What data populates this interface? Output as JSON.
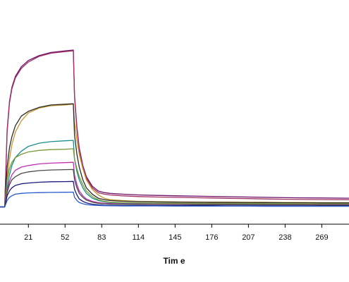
{
  "chart_data": {
    "type": "line",
    "title": "",
    "xlabel": "Tim e",
    "ylabel": "",
    "x_ticks": [
      21,
      52,
      83,
      114,
      145,
      176,
      207,
      238,
      269
    ],
    "xlim": [
      -3,
      292
    ],
    "ylim": [
      -0.02,
      1.1
    ],
    "association_end": 59,
    "grid": false,
    "legend": "none",
    "series": [
      {
        "color": "#6b0f6b",
        "x": [
          -3,
          1,
          3,
          5,
          7,
          10,
          15,
          21,
          30,
          40,
          52,
          59,
          60,
          62,
          64,
          67,
          70,
          75,
          80,
          85,
          90,
          100,
          114,
          130,
          145,
          160,
          176,
          190,
          207,
          220,
          238,
          250,
          269,
          292
        ],
        "y": [
          0,
          0,
          0.48,
          0.66,
          0.75,
          0.82,
          0.88,
          0.92,
          0.95,
          0.97,
          0.98,
          0.985,
          0.7,
          0.5,
          0.37,
          0.26,
          0.19,
          0.13,
          0.1,
          0.09,
          0.085,
          0.08,
          0.075,
          0.072,
          0.07,
          0.068,
          0.066,
          0.064,
          0.062,
          0.06,
          0.058,
          0.057,
          0.056,
          0.055
        ]
      },
      {
        "color": "#a03060",
        "x": [
          -3,
          1,
          3,
          5,
          7,
          10,
          15,
          21,
          30,
          40,
          52,
          59,
          60,
          62,
          64,
          67,
          70,
          75,
          80,
          85,
          90,
          100,
          114,
          130,
          145,
          160,
          176,
          190,
          207,
          220,
          238,
          250,
          269,
          292
        ],
        "y": [
          0,
          0,
          0.47,
          0.65,
          0.74,
          0.81,
          0.87,
          0.91,
          0.945,
          0.965,
          0.975,
          0.98,
          0.69,
          0.49,
          0.36,
          0.25,
          0.18,
          0.12,
          0.09,
          0.08,
          0.075,
          0.07,
          0.065,
          0.062,
          0.06,
          0.058,
          0.056,
          0.054,
          0.052,
          0.05,
          0.048,
          0.047,
          0.046,
          0.045
        ]
      },
      {
        "color": "#c89428",
        "x": [
          -3,
          1,
          3,
          5,
          7,
          10,
          15,
          21,
          30,
          40,
          52,
          59,
          60,
          62,
          64,
          67,
          70,
          75,
          80,
          85,
          90,
          100,
          114,
          130,
          145,
          160,
          176,
          190,
          207,
          220,
          238,
          250,
          269,
          292
        ],
        "y": [
          0,
          0,
          0.18,
          0.3,
          0.39,
          0.47,
          0.54,
          0.59,
          0.62,
          0.635,
          0.64,
          0.645,
          0.53,
          0.42,
          0.33,
          0.24,
          0.17,
          0.11,
          0.075,
          0.055,
          0.045,
          0.04,
          0.035,
          0.033,
          0.032,
          0.031,
          0.03,
          0.03,
          0.029,
          0.029,
          0.028,
          0.028,
          0.027,
          0.027
        ]
      },
      {
        "color": "#2a2a2a",
        "x": [
          -3,
          1,
          3,
          5,
          7,
          10,
          15,
          21,
          30,
          40,
          52,
          59,
          60,
          62,
          64,
          67,
          70,
          75,
          80,
          85,
          90,
          100,
          114,
          130,
          145,
          160,
          176,
          190,
          207,
          220,
          238,
          250,
          269,
          292
        ],
        "y": [
          0,
          0,
          0.25,
          0.37,
          0.44,
          0.51,
          0.57,
          0.6,
          0.625,
          0.64,
          0.645,
          0.648,
          0.45,
          0.33,
          0.25,
          0.17,
          0.12,
          0.08,
          0.055,
          0.045,
          0.04,
          0.036,
          0.033,
          0.031,
          0.03,
          0.029,
          0.028,
          0.028,
          0.027,
          0.027,
          0.026,
          0.026,
          0.025,
          0.025
        ]
      },
      {
        "color": "#1a8c8c",
        "x": [
          -3,
          1,
          3,
          5,
          7,
          10,
          15,
          21,
          30,
          40,
          52,
          59,
          60,
          62,
          64,
          67,
          70,
          75,
          80,
          85,
          90,
          100,
          114,
          130,
          145,
          160,
          176,
          190,
          207,
          220,
          238,
          250,
          269,
          292
        ],
        "y": [
          0,
          0,
          0.12,
          0.2,
          0.26,
          0.31,
          0.35,
          0.38,
          0.4,
          0.41,
          0.415,
          0.418,
          0.3,
          0.22,
          0.17,
          0.12,
          0.085,
          0.055,
          0.04,
          0.032,
          0.028,
          0.025,
          0.023,
          0.022,
          0.021,
          0.021,
          0.02,
          0.02,
          0.02,
          0.019,
          0.019,
          0.019,
          0.018,
          0.018
        ]
      },
      {
        "color": "#7a9a3a",
        "x": [
          -3,
          1,
          3,
          5,
          7,
          10,
          15,
          21,
          30,
          40,
          52,
          59,
          60,
          62,
          64,
          67,
          70,
          75,
          80,
          85,
          90,
          100,
          114,
          130,
          145,
          160,
          176,
          190,
          207,
          220,
          238,
          250,
          269,
          292
        ],
        "y": [
          0,
          0,
          0.17,
          0.24,
          0.28,
          0.31,
          0.33,
          0.345,
          0.355,
          0.36,
          0.362,
          0.365,
          0.3,
          0.24,
          0.19,
          0.14,
          0.1,
          0.065,
          0.045,
          0.035,
          0.03,
          0.027,
          0.025,
          0.024,
          0.023,
          0.023,
          0.022,
          0.022,
          0.022,
          0.021,
          0.021,
          0.021,
          0.02,
          0.02
        ]
      },
      {
        "color": "#c030b0",
        "x": [
          -3,
          1,
          3,
          5,
          7,
          10,
          15,
          21,
          30,
          40,
          52,
          59,
          60,
          62,
          64,
          67,
          70,
          75,
          80,
          85,
          90,
          100,
          114,
          130,
          145,
          160,
          176,
          190,
          207,
          220,
          238,
          250,
          269,
          292
        ],
        "y": [
          0,
          0,
          0.1,
          0.16,
          0.2,
          0.23,
          0.25,
          0.26,
          0.27,
          0.275,
          0.278,
          0.28,
          0.2,
          0.14,
          0.1,
          0.07,
          0.05,
          0.035,
          0.027,
          0.023,
          0.021,
          0.019,
          0.018,
          0.017,
          0.017,
          0.016,
          0.016,
          0.016,
          0.015,
          0.015,
          0.015,
          0.015,
          0.014,
          0.014
        ]
      },
      {
        "color": "#4a4a4a",
        "x": [
          -3,
          1,
          3,
          5,
          7,
          10,
          15,
          21,
          30,
          40,
          52,
          59,
          60,
          62,
          64,
          67,
          70,
          75,
          80,
          85,
          90,
          100,
          114,
          130,
          145,
          160,
          176,
          190,
          207,
          220,
          238,
          250,
          269,
          292
        ],
        "y": [
          0,
          0,
          0.09,
          0.14,
          0.17,
          0.19,
          0.21,
          0.22,
          0.228,
          0.232,
          0.234,
          0.235,
          0.17,
          0.12,
          0.085,
          0.06,
          0.043,
          0.03,
          0.023,
          0.02,
          0.018,
          0.017,
          0.016,
          0.015,
          0.015,
          0.014,
          0.014,
          0.014,
          0.013,
          0.013,
          0.013,
          0.013,
          0.012,
          0.012
        ]
      },
      {
        "color": "#1a1a7a",
        "x": [
          -3,
          1,
          3,
          5,
          7,
          10,
          15,
          21,
          30,
          40,
          52,
          59,
          60,
          62,
          64,
          67,
          70,
          75,
          80,
          85,
          90,
          100,
          114,
          130,
          145,
          160,
          176,
          190,
          207,
          220,
          238,
          250,
          269,
          292
        ],
        "y": [
          0,
          0,
          0.07,
          0.1,
          0.12,
          0.135,
          0.145,
          0.15,
          0.155,
          0.158,
          0.159,
          0.16,
          0.11,
          0.075,
          0.05,
          0.035,
          0.025,
          0.017,
          0.013,
          0.011,
          0.01,
          0.009,
          0.009,
          0.008,
          0.008,
          0.008,
          0.008,
          0.007,
          0.007,
          0.007,
          0.007,
          0.007,
          0.006,
          0.006
        ]
      },
      {
        "color": "#2a5acc",
        "x": [
          -3,
          1,
          3,
          5,
          7,
          10,
          15,
          21,
          30,
          40,
          52,
          59,
          60,
          62,
          64,
          67,
          70,
          75,
          80,
          85,
          90,
          100,
          114,
          130,
          145,
          160,
          176,
          190,
          207,
          220,
          238,
          250,
          269,
          292
        ],
        "y": [
          0,
          0,
          0.04,
          0.06,
          0.07,
          0.08,
          0.085,
          0.088,
          0.09,
          0.091,
          0.092,
          0.093,
          0.06,
          0.04,
          0.028,
          0.02,
          0.015,
          0.011,
          0.009,
          0.008,
          0.007,
          0.006,
          0.006,
          0.006,
          0.005,
          0.005,
          0.005,
          0.005,
          0.005,
          0.004,
          0.004,
          0.004,
          0.004,
          0.004
        ]
      }
    ]
  }
}
